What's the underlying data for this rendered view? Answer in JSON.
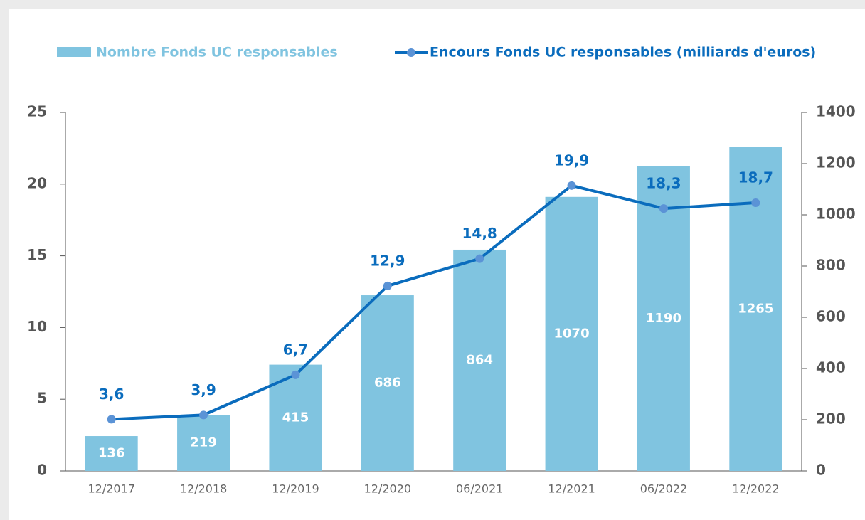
{
  "chart_data": {
    "type": "bar-line",
    "categories": [
      "12/2017",
      "12/2018",
      "12/2019",
      "12/2020",
      "06/2021",
      "12/2021",
      "06/2022",
      "12/2022"
    ],
    "series": [
      {
        "name": "Nombre Fonds UC responsables",
        "type": "bar",
        "axis": "y2",
        "color": "#80c4e0",
        "values": [
          136,
          219,
          415,
          686,
          864,
          1070,
          1190,
          1265
        ]
      },
      {
        "name": "Encours Fonds UC responsables (milliards d'euros)",
        "type": "line",
        "axis": "y",
        "color": "#0a6cbd",
        "values": [
          3.6,
          3.9,
          6.7,
          12.9,
          14.8,
          19.9,
          18.3,
          18.7
        ],
        "value_labels": [
          "3,6",
          "3,9",
          "6,7",
          "12,9",
          "14,8",
          "19,9",
          "18,3",
          "18,7"
        ]
      }
    ],
    "ylim": [
      0,
      25
    ],
    "yticks": [
      0,
      5,
      10,
      15,
      20,
      25
    ],
    "y2lim": [
      0,
      1400
    ],
    "y2ticks": [
      0,
      200,
      400,
      600,
      800,
      1000,
      1200,
      1400
    ],
    "legend": "top"
  }
}
